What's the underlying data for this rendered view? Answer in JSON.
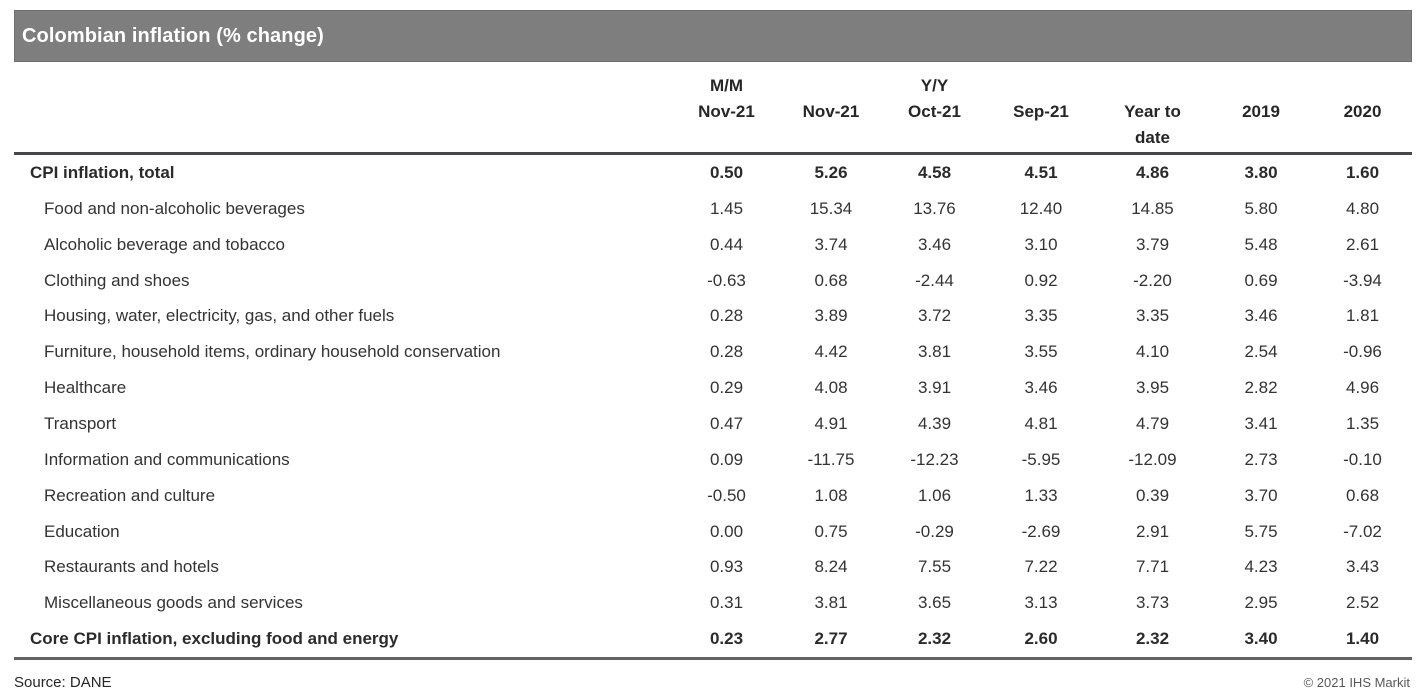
{
  "title_bar": {
    "title": "Colombian inflation (% change)"
  },
  "header": {
    "columns": [
      {
        "group": "M/M",
        "label": "Nov-21",
        "wrap": false
      },
      {
        "group": "",
        "label": "Nov-21",
        "wrap": false
      },
      {
        "group": "Y/Y",
        "label": "Oct-21",
        "wrap": false
      },
      {
        "group": "",
        "label": "Sep-21",
        "wrap": false
      },
      {
        "group": "",
        "label": "Year to date",
        "wrap": true
      },
      {
        "group": "",
        "label": "2019",
        "wrap": false
      },
      {
        "group": "",
        "label": "2020",
        "wrap": false
      }
    ]
  },
  "chart_data": {
    "type": "table",
    "title": "Colombian inflation (% change)",
    "columns": [
      "M/M Nov-21",
      "Nov-21",
      "Y/Y Oct-21",
      "Sep-21",
      "Year to date",
      "2019",
      "2020"
    ],
    "value_format": "2dp",
    "rows": [
      {
        "category": "CPI inflation, total",
        "bold": true,
        "indent": false,
        "values": [
          0.5,
          5.26,
          4.58,
          4.51,
          4.86,
          3.8,
          1.6
        ]
      },
      {
        "category": "Food and non-alcoholic beverages",
        "bold": false,
        "indent": true,
        "values": [
          1.45,
          15.34,
          13.76,
          12.4,
          14.85,
          5.8,
          4.8
        ]
      },
      {
        "category": "Alcoholic beverage and tobacco",
        "bold": false,
        "indent": true,
        "values": [
          0.44,
          3.74,
          3.46,
          3.1,
          3.79,
          5.48,
          2.61
        ]
      },
      {
        "category": "Clothing and shoes",
        "bold": false,
        "indent": true,
        "values": [
          -0.63,
          0.68,
          -2.44,
          0.92,
          -2.2,
          0.69,
          -3.94
        ]
      },
      {
        "category": "Housing, water, electricity, gas, and other fuels",
        "bold": false,
        "indent": true,
        "values": [
          0.28,
          3.89,
          3.72,
          3.35,
          3.35,
          3.46,
          1.81
        ]
      },
      {
        "category": "Furniture, household items, ordinary household conservation",
        "bold": false,
        "indent": true,
        "values": [
          0.28,
          4.42,
          3.81,
          3.55,
          4.1,
          2.54,
          -0.96
        ]
      },
      {
        "category": "Healthcare",
        "bold": false,
        "indent": true,
        "values": [
          0.29,
          4.08,
          3.91,
          3.46,
          3.95,
          2.82,
          4.96
        ]
      },
      {
        "category": "Transport",
        "bold": false,
        "indent": true,
        "values": [
          0.47,
          4.91,
          4.39,
          4.81,
          4.79,
          3.41,
          1.35
        ]
      },
      {
        "category": "Information and communications",
        "bold": false,
        "indent": true,
        "values": [
          0.09,
          -11.75,
          -12.23,
          -5.95,
          -12.09,
          2.73,
          -0.1
        ]
      },
      {
        "category": "Recreation and culture",
        "bold": false,
        "indent": true,
        "values": [
          -0.5,
          1.08,
          1.06,
          1.33,
          0.39,
          3.7,
          0.68
        ]
      },
      {
        "category": "Education",
        "bold": false,
        "indent": true,
        "values": [
          0.0,
          0.75,
          -0.29,
          -2.69,
          2.91,
          5.75,
          -7.02
        ]
      },
      {
        "category": "Restaurants and hotels",
        "bold": false,
        "indent": true,
        "values": [
          0.93,
          8.24,
          7.55,
          7.22,
          7.71,
          4.23,
          3.43
        ]
      },
      {
        "category": "Miscellaneous goods and services",
        "bold": false,
        "indent": true,
        "values": [
          0.31,
          3.81,
          3.65,
          3.13,
          3.73,
          2.95,
          2.52
        ]
      },
      {
        "category": "Core CPI inflation, excluding food and energy",
        "bold": true,
        "indent": false,
        "values": [
          0.23,
          2.77,
          2.32,
          2.6,
          2.32,
          3.4,
          1.4
        ]
      }
    ],
    "source": "DANE"
  },
  "footer": {
    "source": "Source: DANE",
    "copyright": "© 2021 IHS Markit"
  },
  "colors": {
    "title_bar_bg": "#7e7e7e",
    "title_text": "#ffffff",
    "header_rule": "#47474b",
    "bottom_rule": "#636363",
    "header_text": "#262626",
    "body_text": "#333333",
    "copyright_text": "#595959"
  }
}
